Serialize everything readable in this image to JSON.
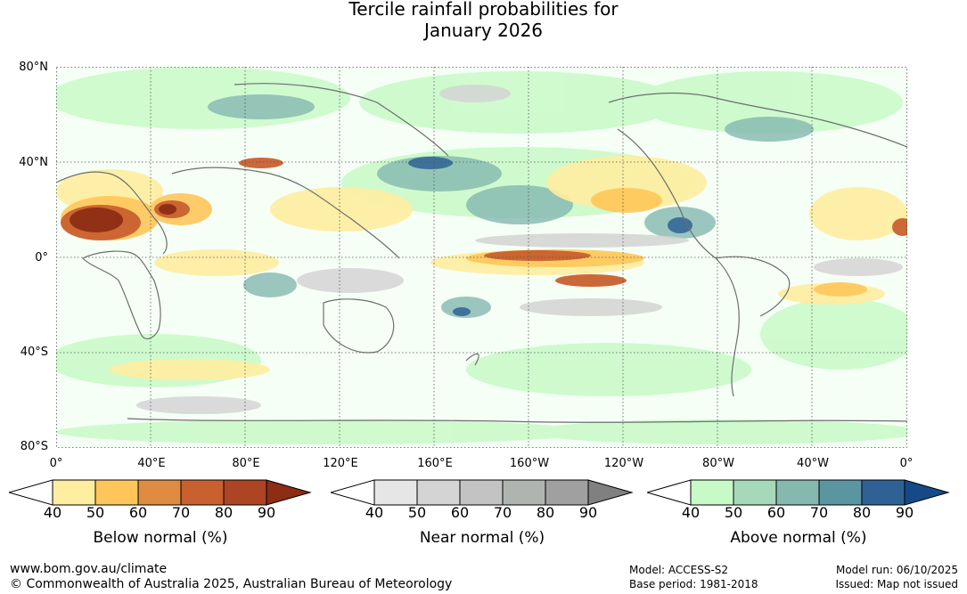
{
  "title": {
    "line1": "Tercile rainfall probabilities for",
    "line2": "January 2026"
  },
  "map": {
    "lat_labels": [
      "80°N",
      "40°N",
      "0°",
      "40°S",
      "80°S"
    ],
    "lon_labels": [
      "0°",
      "40°E",
      "80°E",
      "120°E",
      "160°E",
      "160°W",
      "120°W",
      "80°W",
      "40°W",
      "0°"
    ]
  },
  "legends": [
    {
      "title": "Below normal (%)",
      "ticks": [
        "40",
        "50",
        "60",
        "70",
        "80",
        "90"
      ],
      "colors": [
        "#ffffff",
        "#ffeda0",
        "#fec65a",
        "#df8c42",
        "#c9602f",
        "#ad4424",
        "#8c2d14"
      ]
    },
    {
      "title": "Near normal (%)",
      "ticks": [
        "40",
        "50",
        "60",
        "70",
        "80",
        "90"
      ],
      "colors": [
        "#ffffff",
        "#e6e6e6",
        "#d4d4d4",
        "#c3c3c3",
        "#b0b4b1",
        "#a0a0a0",
        "#808080"
      ]
    },
    {
      "title": "Above normal (%)",
      "ticks": [
        "40",
        "50",
        "60",
        "70",
        "80",
        "90"
      ],
      "colors": [
        "#ffffff",
        "#c8fac8",
        "#a6d9b9",
        "#84b8b0",
        "#5a95a2",
        "#2f6294",
        "#164a86"
      ]
    }
  ],
  "footer": {
    "url": "www.bom.gov.au/climate",
    "copyright": "© Commonwealth of Australia 2025, Australian Bureau of Meteorology",
    "model": "Model: ACCESS-S2",
    "base_period": "Base period: 1981-2018",
    "model_run": "Model run: 06/10/2025",
    "issued": "Issued: Map not issued"
  }
}
